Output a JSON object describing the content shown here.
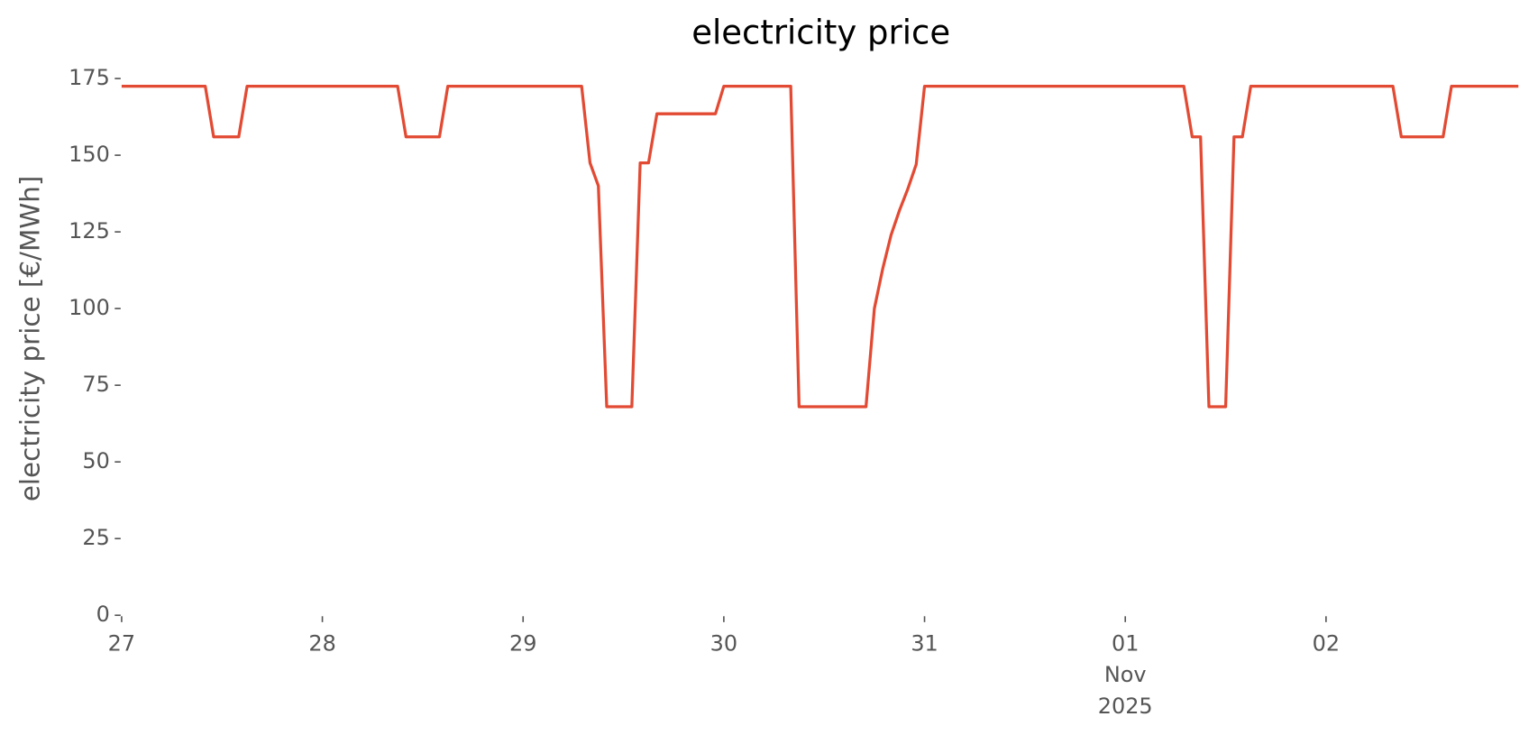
{
  "chart_data": {
    "type": "line",
    "title": "electricity price",
    "ylabel": "electricity price [€/MWh]",
    "series": [
      {
        "name": "electricity price",
        "color": "#E24A33",
        "x": [
          0,
          10,
          11,
          14,
          15,
          33,
          34,
          38,
          39,
          55,
          56,
          57,
          58,
          61,
          62,
          63,
          64,
          71,
          72,
          80,
          81,
          89,
          90,
          91,
          92,
          93,
          94,
          95,
          96,
          127,
          128,
          129,
          130,
          132,
          133,
          134,
          135,
          152,
          153,
          158,
          159,
          167
        ],
        "values": [
          172.5,
          172.5,
          156,
          156,
          172.5,
          172.5,
          156,
          156,
          172.5,
          172.5,
          147.5,
          140,
          68,
          68,
          147.5,
          147.5,
          163.5,
          163.5,
          172.5,
          172.5,
          68,
          68,
          100,
          113,
          124,
          132,
          139,
          147,
          172.5,
          172.5,
          156,
          156,
          68,
          68,
          156,
          156,
          172.5,
          172.5,
          156,
          156,
          172.5,
          172.5
        ]
      }
    ],
    "xlim": [
      0,
      167
    ],
    "xticks": [
      {
        "value": 0,
        "label": "27"
      },
      {
        "value": 24,
        "label": "28"
      },
      {
        "value": 48,
        "label": "29"
      },
      {
        "value": 72,
        "label": "30"
      },
      {
        "value": 96,
        "label": "31"
      },
      {
        "value": 120,
        "label": "01\nNov\n2025"
      },
      {
        "value": 144,
        "label": "02"
      }
    ],
    "ylim": [
      0,
      175
    ],
    "yticks": [
      0,
      25,
      50,
      75,
      100,
      125,
      150,
      175
    ],
    "grid": false
  }
}
